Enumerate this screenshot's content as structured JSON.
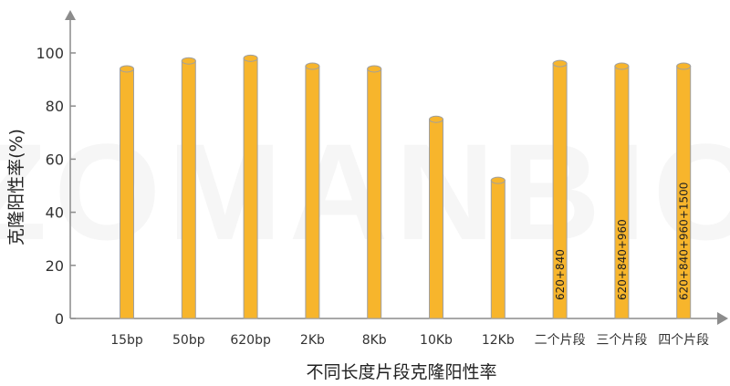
{
  "watermark": "ZOMANBIO",
  "chart_data": {
    "type": "bar",
    "title": "",
    "xlabel": "不同长度片段克隆阳性率",
    "ylabel": "克隆阳性率(%)",
    "ylim": [
      0,
      100
    ],
    "yticks": [
      "0",
      "20",
      "40",
      "60",
      "80",
      "100"
    ],
    "grid": false,
    "categories": [
      "15bp",
      "50bp",
      "620bp",
      "2Kb",
      "8Kb",
      "10Kb",
      "12Kb",
      "二个片段",
      "三个片段",
      "四个片段"
    ],
    "values": [
      94,
      97,
      98,
      95,
      94,
      75,
      52,
      96,
      95,
      95
    ],
    "bar_labels": [
      "",
      "",
      "",
      "",
      "",
      "",
      "",
      "620+840",
      "620+840+960",
      "620+840+960+1500"
    ],
    "colors": {
      "bar": "#F7B52C",
      "bar_edge": "#A0A0A0",
      "axis": "#8C8C8C"
    }
  }
}
